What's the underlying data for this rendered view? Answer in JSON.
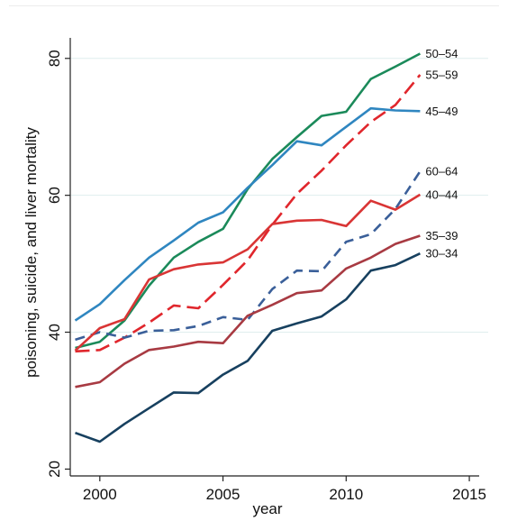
{
  "chart_data": {
    "type": "line",
    "title": "",
    "xlabel": "year",
    "ylabel": "poisoning, suicide, and liver mortality",
    "xlim": [
      1998.8,
      2015.4
    ],
    "ylim": [
      19,
      83
    ],
    "xticks": [
      2000,
      2005,
      2010,
      2015
    ],
    "yticks": [
      20,
      40,
      60,
      80
    ],
    "grid": true,
    "legend": "direct labels at right end of each line",
    "x": [
      1999,
      2000,
      2001,
      2002,
      2003,
      2004,
      2005,
      2006,
      2007,
      2008,
      2009,
      2010,
      2011,
      2012,
      2013
    ],
    "series": [
      {
        "name": "50–54",
        "color": "#1b8a5a",
        "dash": "solid",
        "values": [
          37.7,
          38.6,
          41.7,
          46.8,
          50.9,
          53.2,
          55.1,
          60.9,
          65.3,
          68.5,
          71.6,
          72.2,
          77.0,
          78.8,
          80.7
        ]
      },
      {
        "name": "55–59",
        "color": "#e0262c",
        "dash": "longdash",
        "values": [
          37.2,
          37.4,
          39.2,
          41.4,
          43.9,
          43.5,
          46.9,
          50.5,
          55.7,
          60.2,
          63.6,
          67.3,
          70.7,
          73.2,
          77.6
        ]
      },
      {
        "name": "45–49",
        "color": "#2f86c0",
        "dash": "solid",
        "values": [
          41.7,
          44.1,
          47.6,
          50.9,
          53.4,
          56.0,
          57.5,
          61.1,
          64.4,
          67.9,
          67.3,
          70.0,
          72.7,
          72.4,
          72.3
        ]
      },
      {
        "name": "60–64",
        "color": "#3a5f99",
        "dash": "dash",
        "values": [
          38.9,
          40.0,
          39.2,
          40.2,
          40.3,
          40.9,
          42.2,
          41.8,
          46.3,
          49.0,
          48.9,
          53.2,
          54.3,
          58.0,
          63.5
        ]
      },
      {
        "name": "40–44",
        "color": "#d93535",
        "dash": "solid",
        "values": [
          37.3,
          40.6,
          41.9,
          47.7,
          49.2,
          49.9,
          50.2,
          52.1,
          55.8,
          56.3,
          56.4,
          55.5,
          59.2,
          57.9,
          60.1
        ]
      },
      {
        "name": "35–39",
        "color": "#a83a42",
        "dash": "solid",
        "values": [
          32.0,
          32.7,
          35.4,
          37.4,
          37.9,
          38.6,
          38.4,
          42.4,
          44.0,
          45.7,
          46.1,
          49.3,
          50.9,
          52.9,
          54.1
        ]
      },
      {
        "name": "30–34",
        "color": "#17405f",
        "dash": "solid",
        "values": [
          25.3,
          24.0,
          26.6,
          28.9,
          31.2,
          31.1,
          33.8,
          35.8,
          40.2,
          41.3,
          42.3,
          44.8,
          49.0,
          49.8,
          51.5
        ]
      }
    ]
  }
}
